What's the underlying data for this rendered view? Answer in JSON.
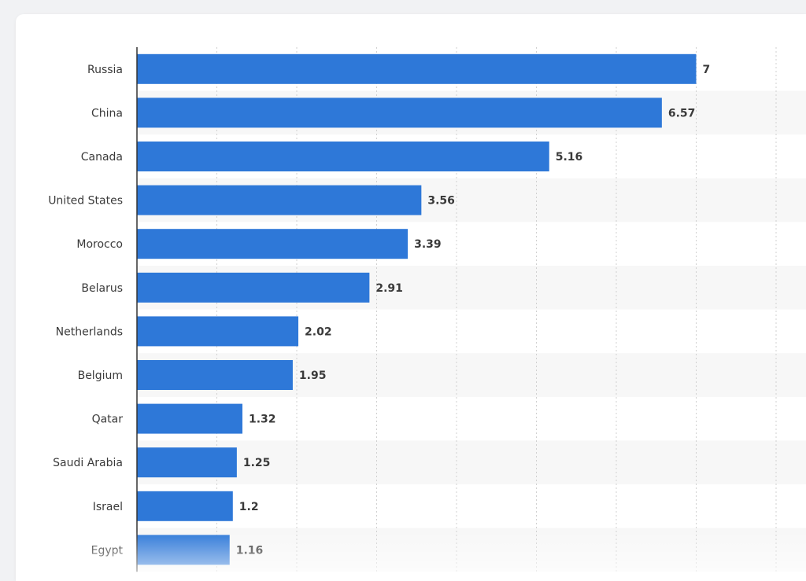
{
  "chart_data": {
    "type": "bar",
    "orientation": "horizontal",
    "categories": [
      "Russia",
      "China",
      "Canada",
      "United States",
      "Morocco",
      "Belarus",
      "Netherlands",
      "Belgium",
      "Qatar",
      "Saudi Arabia",
      "Israel",
      "Egypt"
    ],
    "values": [
      7,
      6.57,
      5.16,
      3.56,
      3.39,
      2.91,
      2.02,
      1.95,
      1.32,
      1.25,
      1.2,
      1.16
    ],
    "value_labels": [
      "7",
      "6.57",
      "5.16",
      "3.56",
      "3.39",
      "2.91",
      "2.02",
      "1.95",
      "1.32",
      "1.25",
      "1.2",
      "1.16"
    ],
    "xlim": [
      0,
      8
    ],
    "grid": true,
    "colors": {
      "bar": "#2e78d8",
      "band": "#f7f7f7",
      "grid": "#d0d0d0",
      "axis": "#333333",
      "label": "#3a3a3a"
    }
  }
}
